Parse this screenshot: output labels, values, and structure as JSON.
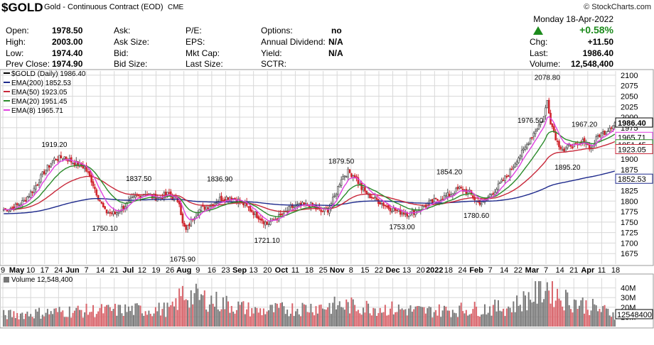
{
  "header": {
    "symbol": "$GOLD",
    "contract": "Gold - Continuous Contract (EOD)",
    "exchange": "CME",
    "copyright": "© StockCharts.com",
    "date": "Monday  18-Apr-2022",
    "change_pct": "+0.58%"
  },
  "quote": {
    "open_label": "Open:",
    "open": "1978.50",
    "high_label": "High:",
    "high": "2003.00",
    "low_label": "Low:",
    "low": "1974.40",
    "prevclose_label": "Prev Close:",
    "prevclose": "1974.90",
    "ask_label": "Ask:",
    "asksize_label": "Ask Size:",
    "bid_label": "Bid:",
    "bidsize_label": "Bid Size:",
    "pe_label": "P/E:",
    "eps_label": "EPS:",
    "mktcap_label": "Mkt Cap:",
    "lastsize_label": "Last Size:",
    "options_label": "Options:",
    "options": "no",
    "annual_div_label": "Annual Dividend:",
    "annual_div": "N/A",
    "yield_label": "Yield:",
    "yield": "N/A",
    "sctr_label": "SCTR:",
    "chg_label": "Chg:",
    "chg": "+11.50",
    "last_label": "Last:",
    "last": "1986.40",
    "volume_label": "Volume:",
    "volume": "12,548,400"
  },
  "colors": {
    "up": "#5a5a5a",
    "down": "#d0262e",
    "ema200": "#1e2a8c",
    "ema50": "#c8283a",
    "ema20": "#2a8a2a",
    "ema8": "#e040e0",
    "grid": "#d8d8d8"
  },
  "chart_data": [
    {
      "type": "candlestick",
      "legend": [
        {
          "name": "$GOLD (Daily) 1986.40",
          "color": "#000000"
        },
        {
          "name": "EMA(200) 1852.53",
          "color": "#1e2a8c"
        },
        {
          "name": "EMA(50) 1923.05",
          "color": "#c8283a"
        },
        {
          "name": "EMA(20) 1951.45",
          "color": "#2a8a2a"
        },
        {
          "name": "EMA(8) 1965.71",
          "color": "#e040e0"
        }
      ],
      "ylim": [
        1650,
        2110
      ],
      "y_ticks": [
        1675,
        1700,
        1725,
        1750,
        1775,
        1800,
        1825,
        1850,
        1875,
        1900,
        1925,
        1950,
        1975,
        2000,
        2025,
        2050,
        2075,
        2100
      ],
      "x_tick_labels": [
        "9",
        "May",
        "10",
        "17",
        "24",
        "Jun",
        "7",
        "14",
        "21",
        "Jul",
        "12",
        "19",
        "26",
        "Aug",
        "9",
        "16",
        "23",
        "Sep",
        "13",
        "20",
        "Oct",
        "11",
        "18",
        "25",
        "Nov",
        "8",
        "15",
        "22",
        "Dec",
        "13",
        "20",
        "2022",
        "18",
        "24",
        "Feb",
        "7",
        "14",
        "22",
        "Mar",
        "7",
        "14",
        "21",
        "Apr",
        "11",
        "18"
      ],
      "price_anchors": [
        [
          0,
          1780
        ],
        [
          6,
          1785
        ],
        [
          12,
          1800
        ],
        [
          18,
          1830
        ],
        [
          24,
          1870
        ],
        [
          30,
          1900
        ],
        [
          36,
          1905
        ],
        [
          40,
          1895
        ],
        [
          48,
          1880
        ],
        [
          52,
          1850
        ],
        [
          56,
          1810
        ],
        [
          60,
          1775
        ],
        [
          66,
          1770
        ],
        [
          72,
          1790
        ],
        [
          78,
          1810
        ],
        [
          84,
          1820
        ],
        [
          88,
          1810
        ],
        [
          92,
          1808
        ],
        [
          98,
          1818
        ],
        [
          100,
          1808
        ],
        [
          104,
          1800
        ],
        [
          106,
          1745
        ],
        [
          108,
          1730
        ],
        [
          112,
          1760
        ],
        [
          116,
          1780
        ],
        [
          122,
          1790
        ],
        [
          128,
          1805
        ],
        [
          134,
          1810
        ],
        [
          140,
          1800
        ],
        [
          146,
          1780
        ],
        [
          152,
          1760
        ],
        [
          156,
          1745
        ],
        [
          160,
          1755
        ],
        [
          166,
          1770
        ],
        [
          170,
          1785
        ],
        [
          176,
          1790
        ],
        [
          182,
          1790
        ],
        [
          188,
          1775
        ],
        [
          192,
          1780
        ],
        [
          196,
          1810
        ],
        [
          200,
          1855
        ],
        [
          204,
          1870
        ],
        [
          208,
          1860
        ],
        [
          212,
          1830
        ],
        [
          216,
          1815
        ],
        [
          222,
          1800
        ],
        [
          228,
          1785
        ],
        [
          234,
          1775
        ],
        [
          240,
          1770
        ],
        [
          246,
          1780
        ],
        [
          252,
          1795
        ],
        [
          258,
          1805
        ],
        [
          264,
          1815
        ],
        [
          270,
          1830
        ],
        [
          276,
          1820
        ],
        [
          280,
          1800
        ],
        [
          284,
          1795
        ],
        [
          288,
          1815
        ],
        [
          292,
          1830
        ],
        [
          296,
          1850
        ],
        [
          300,
          1870
        ],
        [
          304,
          1900
        ],
        [
          308,
          1920
        ],
        [
          312,
          1950
        ],
        [
          316,
          1975
        ],
        [
          320,
          2000
        ],
        [
          322,
          2040
        ],
        [
          324,
          1990
        ],
        [
          328,
          1940
        ],
        [
          332,
          1920
        ],
        [
          336,
          1935
        ],
        [
          340,
          1930
        ],
        [
          344,
          1945
        ],
        [
          348,
          1925
        ],
        [
          352,
          1955
        ],
        [
          356,
          1965
        ],
        [
          360,
          1980
        ],
        [
          362,
          1986.4
        ]
      ],
      "annotations": [
        {
          "text": "1919.20",
          "date_index": 30,
          "value": 1919.2,
          "position": "above"
        },
        {
          "text": "1750.10",
          "date_index": 60,
          "value": 1750.1,
          "position": "below"
        },
        {
          "text": "1837.50",
          "date_index": 80,
          "value": 1837.5,
          "position": "above"
        },
        {
          "text": "1675.90",
          "date_index": 106,
          "value": 1675.9,
          "position": "below"
        },
        {
          "text": "1836.90",
          "date_index": 128,
          "value": 1836.9,
          "position": "above"
        },
        {
          "text": "1721.10",
          "date_index": 156,
          "value": 1721.1,
          "position": "below"
        },
        {
          "text": "1879.50",
          "date_index": 200,
          "value": 1879.5,
          "position": "above"
        },
        {
          "text": "1753.00",
          "date_index": 236,
          "value": 1753.0,
          "position": "below"
        },
        {
          "text": "1854.20",
          "date_index": 264,
          "value": 1854.2,
          "position": "above"
        },
        {
          "text": "1780.60",
          "date_index": 280,
          "value": 1780.6,
          "position": "below"
        },
        {
          "text": "1976.50",
          "date_index": 312,
          "value": 1976.5,
          "position": "above"
        },
        {
          "text": "2078.80",
          "date_index": 322,
          "value": 2078.8,
          "position": "above"
        },
        {
          "text": "1895.20",
          "date_index": 334,
          "value": 1895.2,
          "position": "below"
        },
        {
          "text": "1967.20",
          "date_index": 344,
          "value": 1967.2,
          "position": "above"
        }
      ],
      "right_labels": [
        {
          "text": "1986.40",
          "value": 1986.4,
          "style": "last"
        },
        {
          "text": "1965.71",
          "value": 1965.71,
          "style": "ema8"
        },
        {
          "text": "1951.45",
          "value": 1951.45,
          "style": "ema20"
        },
        {
          "text": "1923.05",
          "value": 1923.05,
          "style": "ema50"
        },
        {
          "text": "1852.53",
          "value": 1852.53,
          "style": "ema200"
        }
      ]
    },
    {
      "type": "bar",
      "legend": [
        {
          "name": "Volume 12,548,400",
          "color": "#000000"
        }
      ],
      "ylim": [
        0,
        50
      ],
      "y_ticks": [
        {
          "value": 10,
          "label": "10M"
        },
        {
          "value": 20,
          "label": "20M"
        },
        {
          "value": 30,
          "label": "30M"
        },
        {
          "value": 40,
          "label": "40M"
        }
      ],
      "last_label": "12548400",
      "volume_anchors": [
        [
          0,
          12
        ],
        [
          40,
          16
        ],
        [
          100,
          18
        ],
        [
          106,
          34
        ],
        [
          150,
          16
        ],
        [
          200,
          22
        ],
        [
          250,
          16
        ],
        [
          300,
          20
        ],
        [
          318,
          36
        ],
        [
          322,
          42
        ],
        [
          330,
          30
        ],
        [
          362,
          13
        ]
      ]
    }
  ]
}
